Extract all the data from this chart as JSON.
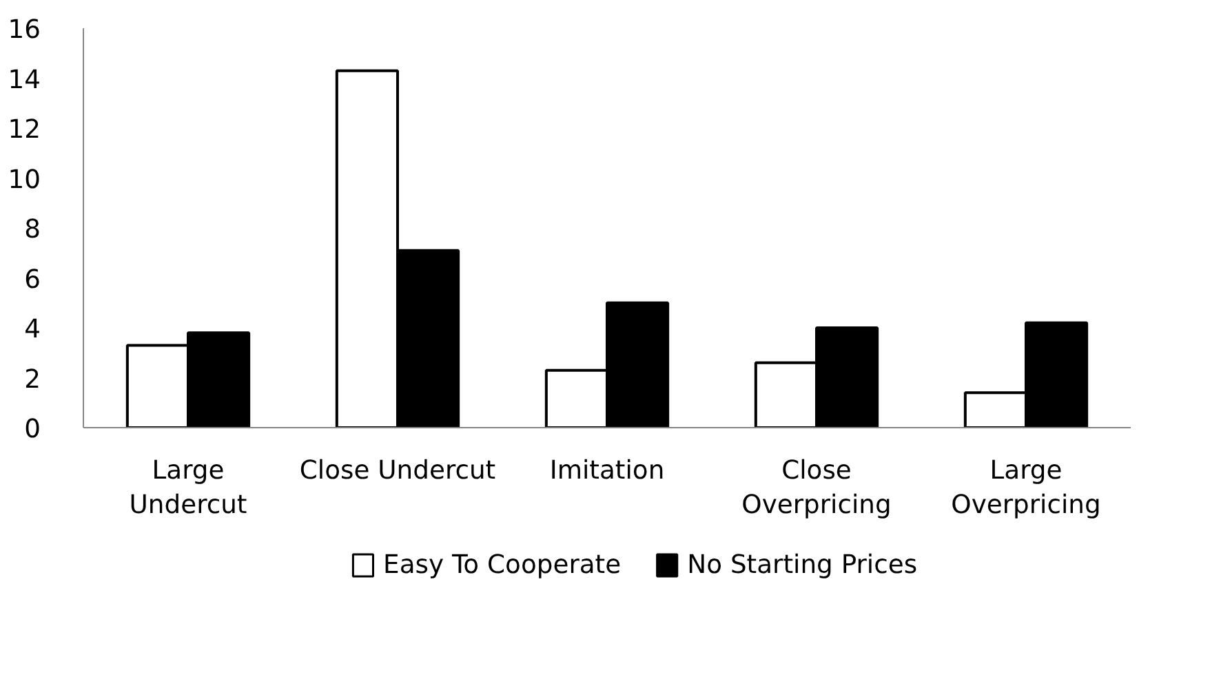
{
  "chart_data": {
    "type": "bar",
    "categories": [
      "Large\nUndercut",
      "Close Undercut",
      "Imitation",
      "Close\nOverpricing",
      "Large\nOverpricing"
    ],
    "series": [
      {
        "name": "Easy To Cooperate",
        "color": "#ffffff",
        "values": [
          3.3,
          14.3,
          2.3,
          2.6,
          1.4
        ]
      },
      {
        "name": "No Starting Prices",
        "color": "#000000",
        "values": [
          3.8,
          7.1,
          5.0,
          4.0,
          4.2
        ]
      }
    ],
    "ylim": [
      0,
      16
    ],
    "yticks": [
      0,
      2,
      4,
      6,
      8,
      10,
      12,
      14,
      16
    ],
    "grid": false,
    "legend": "bottom"
  }
}
